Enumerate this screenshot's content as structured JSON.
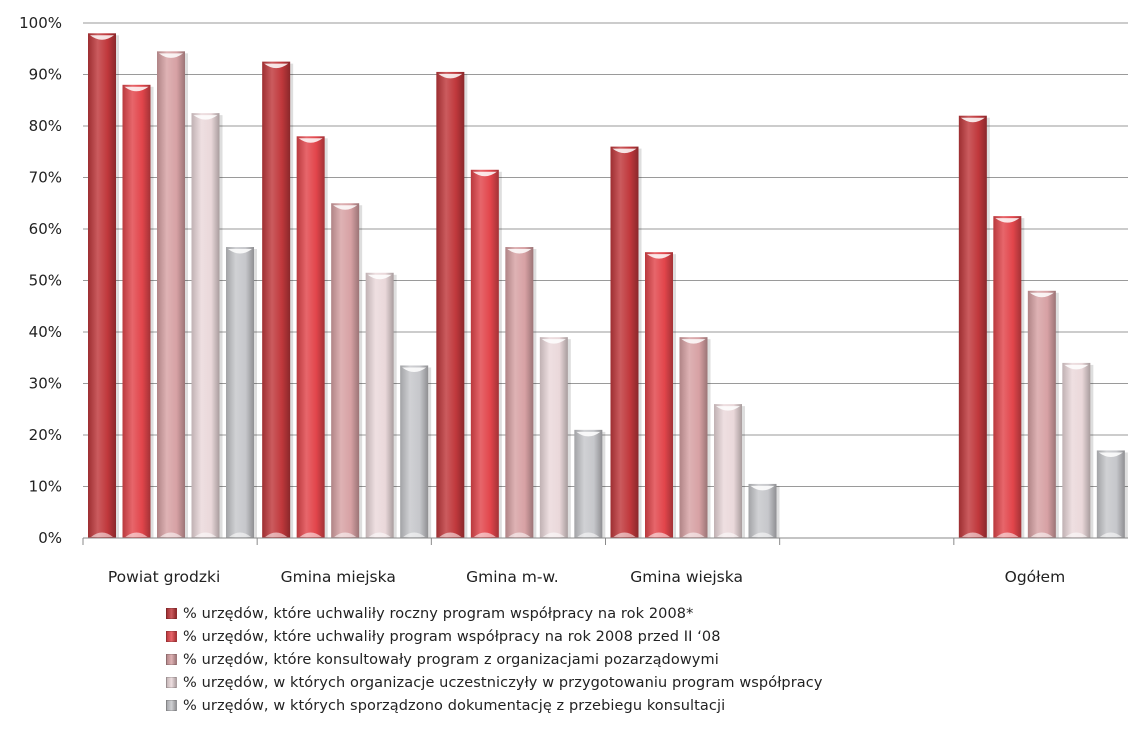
{
  "chart_data": {
    "type": "bar",
    "title": "",
    "xlabel": "",
    "ylabel": "",
    "ylim": [
      0,
      100
    ],
    "y_ticks": [
      "0%",
      "10%",
      "20%",
      "30%",
      "40%",
      "50%",
      "60%",
      "70%",
      "80%",
      "90%",
      "100%"
    ],
    "grid": true,
    "legend_position": "bottom",
    "categories": [
      "Powiat grodzki",
      "Gmina miejska",
      "Gmina m-w.",
      "Gmina wiejska",
      "",
      "Ogółem"
    ],
    "series": [
      {
        "name": "% urzędów, które uchwaliły roczny program współpracy na rok 2008*",
        "color": "#c0383c",
        "values": [
          98,
          92.5,
          90.5,
          76,
          null,
          82
        ]
      },
      {
        "name": "% urzędów, które uchwaliły program współpracy na rok 2008  przed II ‘08",
        "color": "#e2454b",
        "values": [
          88,
          78,
          71.5,
          55.5,
          null,
          62.5
        ]
      },
      {
        "name": "% urzędów, które konsultowały program z organizacjami pozarządowymi",
        "color": "#d7a1a4",
        "values": [
          94.5,
          65,
          56.5,
          39,
          null,
          48
        ]
      },
      {
        "name": "% urzędów, w których organizacje uczestniczyły w przygotowaniu program współpracy",
        "color": "#ead8da",
        "values": [
          82.5,
          51.5,
          39,
          26,
          null,
          34
        ]
      },
      {
        "name": "% urzędów, w których sporządzono dokumentację z przebiegu konsultacji",
        "color": "#c6c7cb",
        "values": [
          56.5,
          33.5,
          21,
          10.5,
          null,
          17
        ]
      }
    ]
  }
}
